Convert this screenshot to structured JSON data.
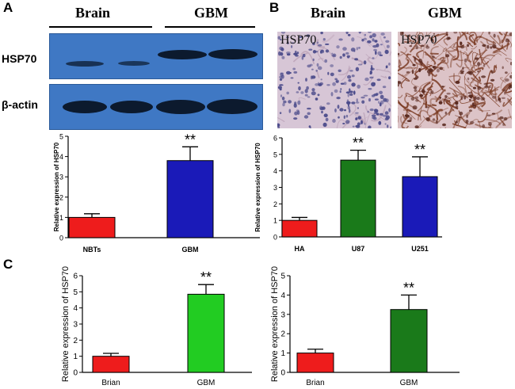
{
  "panels": {
    "A": "A",
    "B": "B",
    "C": "C"
  },
  "panel_a": {
    "brain_header": "Brain",
    "gbm_header": "GBM",
    "hsp70_label": "HSP70",
    "actin_label": "β-actin"
  },
  "panel_b": {
    "brain_header": "Brain",
    "gbm_header": "GBM",
    "ihc_left_label": "HSP70",
    "ihc_right_label": "HSP70"
  },
  "colors": {
    "red": "#ee1c1c",
    "blue": "#1a1ab8",
    "bright_green": "#22cc22",
    "dark_green": "#1a7a1a",
    "blot_bg": "#3f78c4"
  },
  "chart_data": [
    {
      "id": "A-bar",
      "type": "bar",
      "categories": [
        "NBTs",
        "GBM"
      ],
      "values": [
        1.0,
        3.8
      ],
      "errors": [
        0.18,
        0.68
      ],
      "significance": [
        "",
        "**"
      ],
      "ylabel": "Relative expression of HSP70",
      "ylim": [
        0,
        5
      ],
      "yticks": [
        0,
        1,
        2,
        3,
        4,
        5
      ],
      "colors": [
        "#ee1c1c",
        "#1a1ab8"
      ]
    },
    {
      "id": "B-bar",
      "type": "bar",
      "categories": [
        "HA",
        "U87",
        "U251"
      ],
      "values": [
        1.0,
        4.65,
        3.65
      ],
      "errors": [
        0.18,
        0.6,
        1.2
      ],
      "significance": [
        "",
        "**",
        "**"
      ],
      "ylabel": "Relative expression of HSP70",
      "ylim": [
        0,
        6
      ],
      "yticks": [
        0,
        1,
        2,
        3,
        4,
        5,
        6
      ],
      "colors": [
        "#ee1c1c",
        "#1a7a1a",
        "#1a1ab8"
      ]
    },
    {
      "id": "C-left",
      "type": "bar",
      "categories": [
        "Brian",
        "GBM"
      ],
      "values": [
        1.0,
        4.85
      ],
      "errors": [
        0.18,
        0.6
      ],
      "significance": [
        "",
        "**"
      ],
      "ylabel": "Relative expression of HSP70",
      "ylim": [
        0,
        6
      ],
      "yticks": [
        0,
        1,
        2,
        3,
        4,
        5,
        6
      ],
      "colors": [
        "#ee1c1c",
        "#22cc22"
      ]
    },
    {
      "id": "C-right",
      "type": "bar",
      "categories": [
        "Brian",
        "GBM"
      ],
      "values": [
        1.0,
        3.25
      ],
      "errors": [
        0.2,
        0.75
      ],
      "significance": [
        "",
        "**"
      ],
      "ylabel": "Relative expression of HSP70",
      "ylim": [
        0,
        5
      ],
      "yticks": [
        0,
        1,
        2,
        3,
        4,
        5
      ],
      "colors": [
        "#ee1c1c",
        "#1a7a1a"
      ]
    }
  ]
}
